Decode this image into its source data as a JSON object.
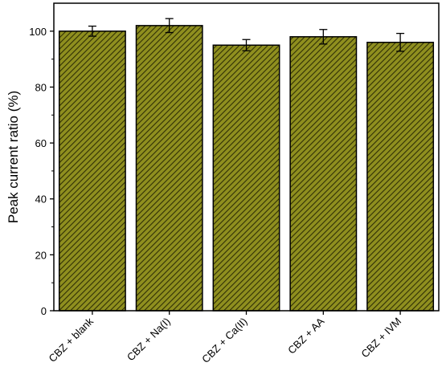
{
  "chart_data": {
    "type": "bar",
    "title": "",
    "xlabel": "",
    "ylabel": "Peak current ratio (%)",
    "categories": [
      "CBZ + blank",
      "CBZ + Na(I)",
      "CBZ + Ca(II)",
      "CBZ + AA",
      "CBZ + IVM"
    ],
    "values": [
      100,
      102,
      95,
      98,
      96
    ],
    "errors": [
      1.8,
      2.5,
      2.0,
      2.6,
      3.2
    ],
    "ylim": [
      0,
      110
    ],
    "yticks": [
      0,
      20,
      40,
      60,
      80,
      100
    ],
    "grid": false,
    "bar_color": "#8f8f1f",
    "hatch_color": "#2f2f05",
    "hatch_style": "diagonal"
  }
}
